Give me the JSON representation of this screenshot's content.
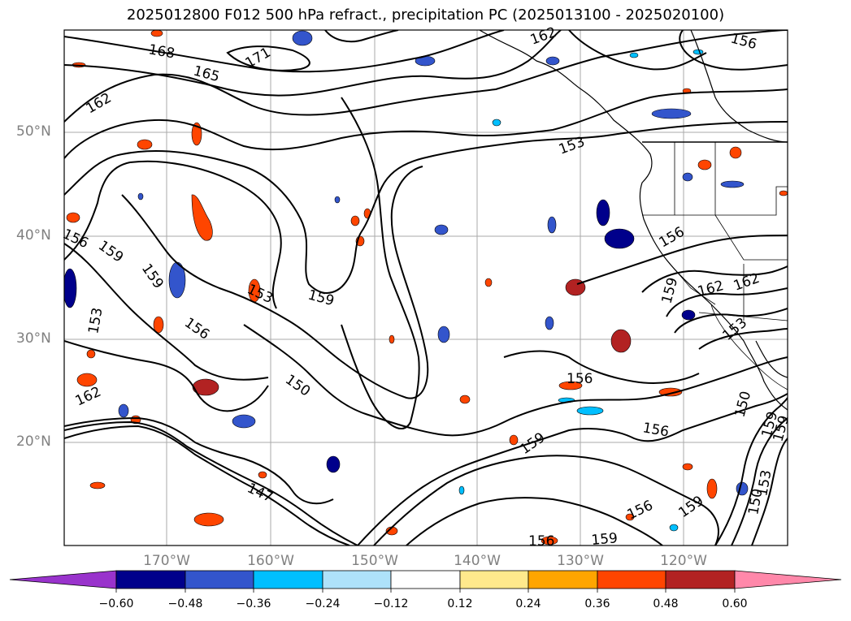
{
  "title": "2025012800 F012 500 hPa refract., precipitation PC (2025013100 - 2025020100)",
  "latitude_labels": [
    "50°N",
    "40°N",
    "30°N",
    "20°N"
  ],
  "longitude_labels": [
    "170°W",
    "160°W",
    "150°W",
    "140°W",
    "130°W",
    "120°W"
  ],
  "contour_labels": [
    "168",
    "165",
    "171",
    "162",
    "162",
    "153",
    "156",
    "159",
    "159",
    "153",
    "159",
    "156",
    "150",
    "162",
    "147",
    "156",
    "156",
    "159",
    "156",
    "159",
    "150",
    "153",
    "156",
    "159",
    "162",
    "162",
    "153",
    "156",
    "159",
    "153",
    "150",
    "159",
    "156",
    "159"
  ],
  "colorbar": {
    "ticks": [
      "−0.60",
      "−0.48",
      "−0.36",
      "−0.24",
      "−0.12",
      "0.12",
      "0.24",
      "0.36",
      "0.48",
      "0.60"
    ],
    "colors": [
      "#9933cc",
      "#00008b",
      "#3355cc",
      "#00bfff",
      "#aee2fa",
      "#ffffff",
      "#ffe98c",
      "#ffa500",
      "#ff4500",
      "#b22222",
      "#ff88aa"
    ]
  },
  "colors": {
    "contour": "#000000",
    "grid": "#aaaaaa",
    "coast": "#000000",
    "axis_label": "#808080"
  }
}
